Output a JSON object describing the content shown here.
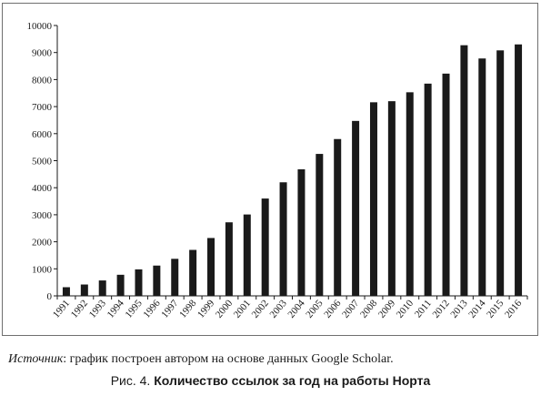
{
  "chart_data": {
    "type": "bar",
    "title": "",
    "xlabel": "",
    "ylabel": "",
    "ylim": [
      0,
      10000
    ],
    "yticks": [
      0,
      1000,
      2000,
      3000,
      4000,
      5000,
      6000,
      7000,
      8000,
      9000,
      10000
    ],
    "grid": false,
    "legend": "none",
    "bar_color": "#1a1a1a",
    "categories": [
      "1991",
      "1992",
      "1993",
      "1994",
      "1995",
      "1996",
      "1997",
      "1998",
      "1999",
      "2000",
      "2001",
      "2002",
      "2003",
      "2004",
      "2005",
      "2006",
      "2007",
      "2008",
      "2009",
      "2010",
      "2011",
      "2012",
      "2013",
      "2014",
      "2015",
      "2016"
    ],
    "values": [
      320,
      420,
      570,
      780,
      980,
      1120,
      1370,
      1700,
      2140,
      2720,
      3010,
      3600,
      4200,
      4680,
      5250,
      5800,
      6470,
      7160,
      7200,
      7530,
      7850,
      8220,
      9270,
      8780,
      9080,
      9300
    ]
  },
  "source": {
    "label": "Источник",
    "text": ": график построен автором на основе данных Google Scholar."
  },
  "caption": {
    "prefix": "Рис. 4. ",
    "title": "Количество ссылок за год на работы Норта"
  }
}
